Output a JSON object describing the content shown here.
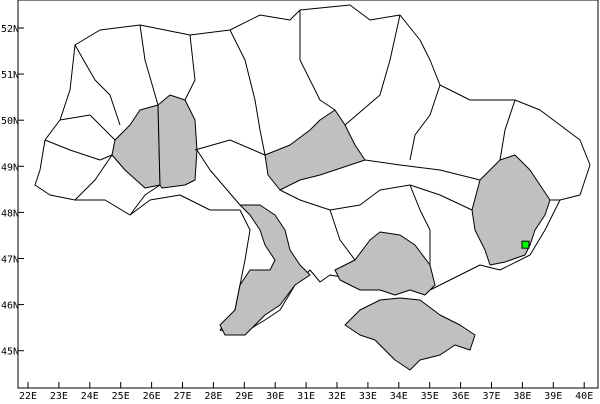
{
  "map": {
    "x_ticks": [
      "22E",
      "23E",
      "24E",
      "25E",
      "26E",
      "27E",
      "28E",
      "29E",
      "30E",
      "31E",
      "32E",
      "33E",
      "34E",
      "35E",
      "36E",
      "37E",
      "38E",
      "39E",
      "40E"
    ],
    "y_ticks": [
      "45N",
      "46N",
      "47N",
      "48N",
      "49N",
      "50N",
      "51N",
      " 52N"
    ],
    "lon_range": [
      21.8,
      40.4
    ],
    "lat_range": [
      44.2,
      52.6
    ],
    "colors": {
      "highlight": "#c0c0c0",
      "marker": "#00ff00",
      "land": "#ffffff",
      "border": "#000000"
    },
    "highlighted_regions": [
      "Ternopil",
      "Khmelnytskyi",
      "Cherkasy",
      "Odesa",
      "Kherson",
      "Crimea",
      "Donetsk"
    ],
    "marker": {
      "lon": 38.1,
      "lat": 47.3
    }
  }
}
